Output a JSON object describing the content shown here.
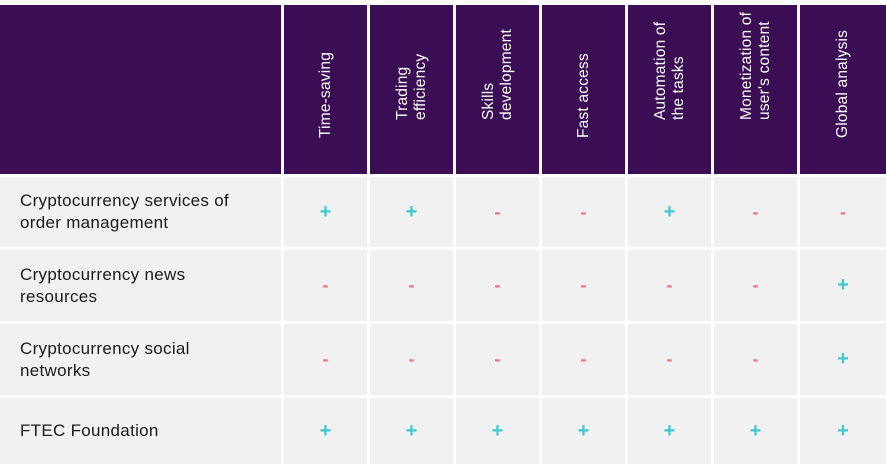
{
  "columns": [
    "Time-saving",
    "Trading\nefficiency",
    "Skills\ndevelopment",
    "Fast access",
    "Automation of\nthe tasks",
    "Monetization of\nuser's content",
    "Global analysis"
  ],
  "rows": [
    {
      "label": "Cryptocurrency services of\norder management",
      "values": [
        "+",
        "+",
        "-",
        "-",
        "+",
        "-",
        "-"
      ]
    },
    {
      "label": "Cryptocurrency news\nresources",
      "values": [
        "-",
        "-",
        "-",
        "-",
        "-",
        "-",
        "+"
      ]
    },
    {
      "label": "Cryptocurrency social\nnetworks",
      "values": [
        "-",
        "-",
        "-",
        "-",
        "-",
        "-",
        "+"
      ]
    },
    {
      "label": "FTEC Foundation",
      "values": [
        "+",
        "+",
        "+",
        "+",
        "+",
        "+",
        "+"
      ]
    }
  ],
  "colors": {
    "header_bg": "#3b0d55",
    "cell_bg": "#f1f1f1",
    "plus": "#3ec8cf",
    "minus": "#f0707a"
  }
}
